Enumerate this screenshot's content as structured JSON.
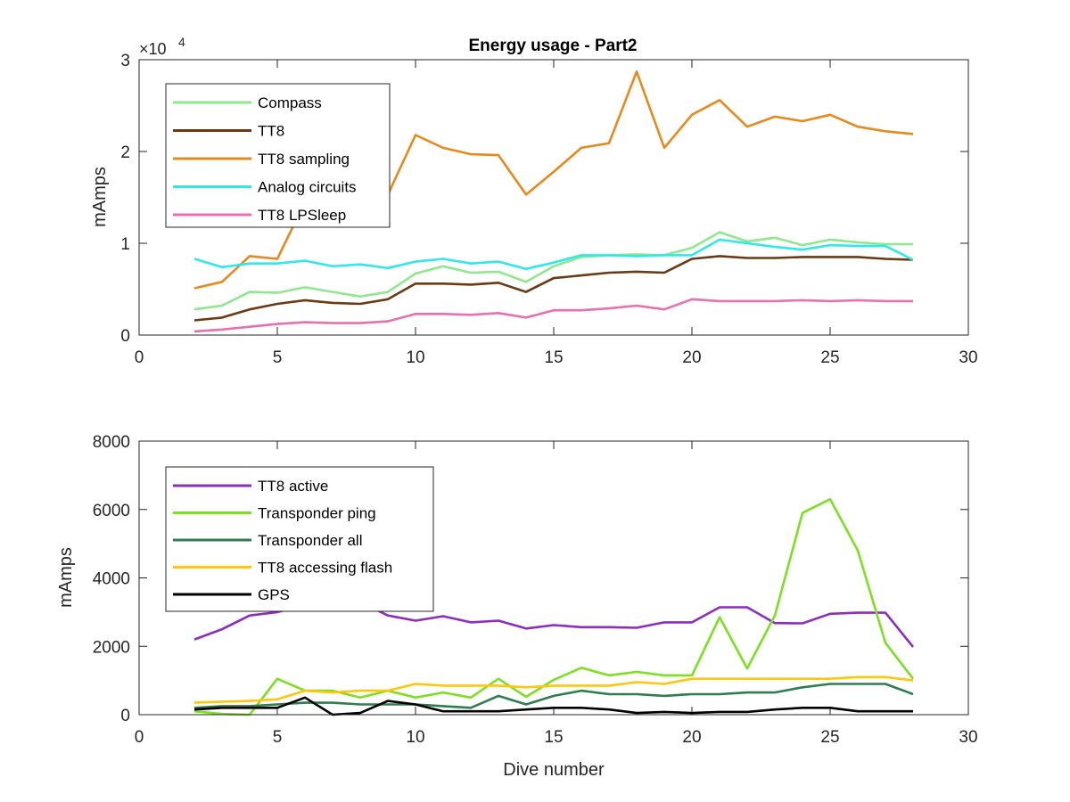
{
  "figure": {
    "title": "Energy usage - Part2",
    "xlabel": "Dive number"
  },
  "chart_data": [
    {
      "type": "line",
      "title": "Energy usage - Part2",
      "xlabel": "",
      "ylabel": "mAmps",
      "y_exponent_label": "×10",
      "y_exponent_power": "4",
      "xlim": [
        0,
        30
      ],
      "ylim": [
        0,
        30000
      ],
      "xticks": [
        0,
        5,
        10,
        15,
        20,
        25,
        30
      ],
      "yticks": [
        0,
        10000,
        20000,
        30000
      ],
      "ytick_labels": [
        "0",
        "1",
        "2",
        "3"
      ],
      "grid": false,
      "legend_location": "top-left",
      "x": [
        2,
        3,
        4,
        5,
        6,
        7,
        8,
        9,
        10,
        11,
        12,
        13,
        14,
        15,
        16,
        17,
        18,
        19,
        20,
        21,
        22,
        23,
        24,
        25,
        26,
        27,
        28
      ],
      "series": [
        {
          "name": "Compass",
          "color": "#8ee88e",
          "values": [
            2800,
            3200,
            4700,
            4600,
            5200,
            4700,
            4200,
            4700,
            6700,
            7500,
            6800,
            6900,
            5800,
            7500,
            8500,
            8700,
            8800,
            8700,
            9500,
            11200,
            10200,
            10600,
            9800,
            10400,
            10100,
            9900,
            9900
          ]
        },
        {
          "name": "TT8",
          "color": "#6b3a12",
          "values": [
            1600,
            1900,
            2800,
            3400,
            3800,
            3500,
            3400,
            3900,
            5600,
            5600,
            5500,
            5700,
            4700,
            6200,
            6500,
            6800,
            6900,
            6800,
            8300,
            8600,
            8400,
            8400,
            8500,
            8500,
            8500,
            8300,
            8200
          ]
        },
        {
          "name": "TT8 sampling",
          "color": "#e8891c",
          "values": [
            5100,
            5800,
            8600,
            8300,
            14500,
            15500,
            14000,
            15300,
            21800,
            20400,
            19700,
            19600,
            15300,
            17800,
            20400,
            20900,
            28700,
            20400,
            24000,
            25600,
            22700,
            23800,
            23300,
            24000,
            22700,
            22200,
            21900
          ]
        },
        {
          "name": "Analog circuits",
          "color": "#30e8e8",
          "values": [
            8300,
            7400,
            7800,
            7800,
            8100,
            7500,
            7700,
            7300,
            8000,
            8300,
            7800,
            8000,
            7200,
            7900,
            8700,
            8700,
            8600,
            8700,
            8700,
            10400,
            10000,
            9600,
            9300,
            9800,
            9700,
            9700,
            8200
          ]
        },
        {
          "name": "TT8 LPSleep",
          "color": "#e870b0",
          "values": [
            400,
            600,
            900,
            1200,
            1400,
            1300,
            1300,
            1500,
            2300,
            2300,
            2200,
            2400,
            1900,
            2700,
            2700,
            2900,
            3200,
            2800,
            3900,
            3700,
            3700,
            3700,
            3800,
            3700,
            3800,
            3700,
            3700
          ]
        }
      ]
    },
    {
      "type": "line",
      "title": "",
      "xlabel": "Dive number",
      "ylabel": "mAmps",
      "xlim": [
        0,
        30
      ],
      "ylim": [
        0,
        8000
      ],
      "xticks": [
        0,
        5,
        10,
        15,
        20,
        25,
        30
      ],
      "yticks": [
        0,
        2000,
        4000,
        6000,
        8000
      ],
      "ytick_labels": [
        "0",
        "2000",
        "4000",
        "6000",
        "8000"
      ],
      "grid": false,
      "legend_location": "top-left",
      "x": [
        2,
        3,
        4,
        5,
        6,
        7,
        8,
        9,
        10,
        11,
        12,
        13,
        14,
        15,
        16,
        17,
        18,
        19,
        20,
        21,
        22,
        23,
        24,
        25,
        26,
        27,
        28
      ],
      "series": [
        {
          "name": "TT8 active",
          "color": "#8c2cc0",
          "values": [
            2200,
            2500,
            2900,
            3000,
            3200,
            3300,
            3300,
            2900,
            2750,
            2880,
            2700,
            2750,
            2520,
            2620,
            2560,
            2560,
            2540,
            2700,
            2700,
            3140,
            3140,
            2680,
            2670,
            2950,
            2980,
            2980,
            1980
          ]
        },
        {
          "name": "Transponder ping",
          "color": "#7ce020",
          "values": [
            100,
            20,
            0,
            1050,
            700,
            700,
            500,
            700,
            500,
            650,
            500,
            1050,
            520,
            1020,
            1370,
            1150,
            1250,
            1150,
            1150,
            2850,
            1350,
            2900,
            5900,
            6300,
            4800,
            2100,
            1050
          ]
        },
        {
          "name": "Transponder all",
          "color": "#2e7d50",
          "values": [
            200,
            250,
            250,
            300,
            350,
            350,
            300,
            300,
            300,
            250,
            200,
            550,
            300,
            550,
            700,
            600,
            600,
            550,
            600,
            600,
            650,
            650,
            800,
            900,
            900,
            900,
            600
          ]
        },
        {
          "name": "TT8 accessing flash",
          "color": "#ffc60a",
          "values": [
            350,
            380,
            400,
            450,
            700,
            650,
            700,
            700,
            900,
            850,
            850,
            850,
            800,
            850,
            850,
            850,
            950,
            900,
            1050,
            1050,
            1050,
            1050,
            1050,
            1050,
            1100,
            1100,
            1000
          ]
        },
        {
          "name": "GPS",
          "color": "#000000",
          "values": [
            150,
            200,
            200,
            200,
            500,
            0,
            50,
            400,
            300,
            100,
            100,
            100,
            150,
            200,
            200,
            150,
            50,
            80,
            50,
            80,
            80,
            150,
            200,
            200,
            100,
            100,
            100
          ]
        }
      ]
    }
  ]
}
